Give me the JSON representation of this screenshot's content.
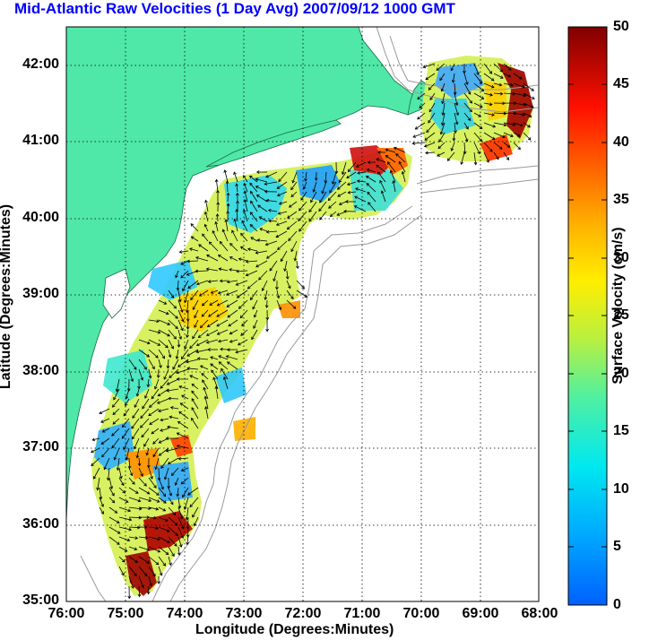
{
  "title": "Mid-Atlantic Raw Velocities (1 Day Avg) 2007/09/12 1000 GMT",
  "axes": {
    "x_label": "Longitude (Degrees:Minutes)",
    "y_label": "Latitude (Degrees:Minutes)",
    "x_ticks": [
      "76:00",
      "75:00",
      "74:00",
      "73:00",
      "72:00",
      "71:00",
      "70:00",
      "69:00",
      "68:00"
    ],
    "y_ticks": [
      "42:00",
      "41:00",
      "40:00",
      "39:00",
      "38:00",
      "37:00",
      "36:00",
      "35:00"
    ]
  },
  "colorbar": {
    "label": "Surface Velocity (cm/s)",
    "ticks": [
      "50",
      "45",
      "40",
      "35",
      "30",
      "25",
      "20",
      "15",
      "10",
      "5",
      "0"
    ],
    "range": [
      0,
      50
    ]
  },
  "colors": {
    "land": "#4fe8a8",
    "title": "#0000ff",
    "grid": "#000000",
    "bathymetry": "#9a9a9a"
  },
  "chart_data": {
    "type": "heatmap",
    "xlim": [
      -76,
      -68
    ],
    "ylim": [
      35,
      42.5
    ],
    "grid": true,
    "vector_field": true
  }
}
